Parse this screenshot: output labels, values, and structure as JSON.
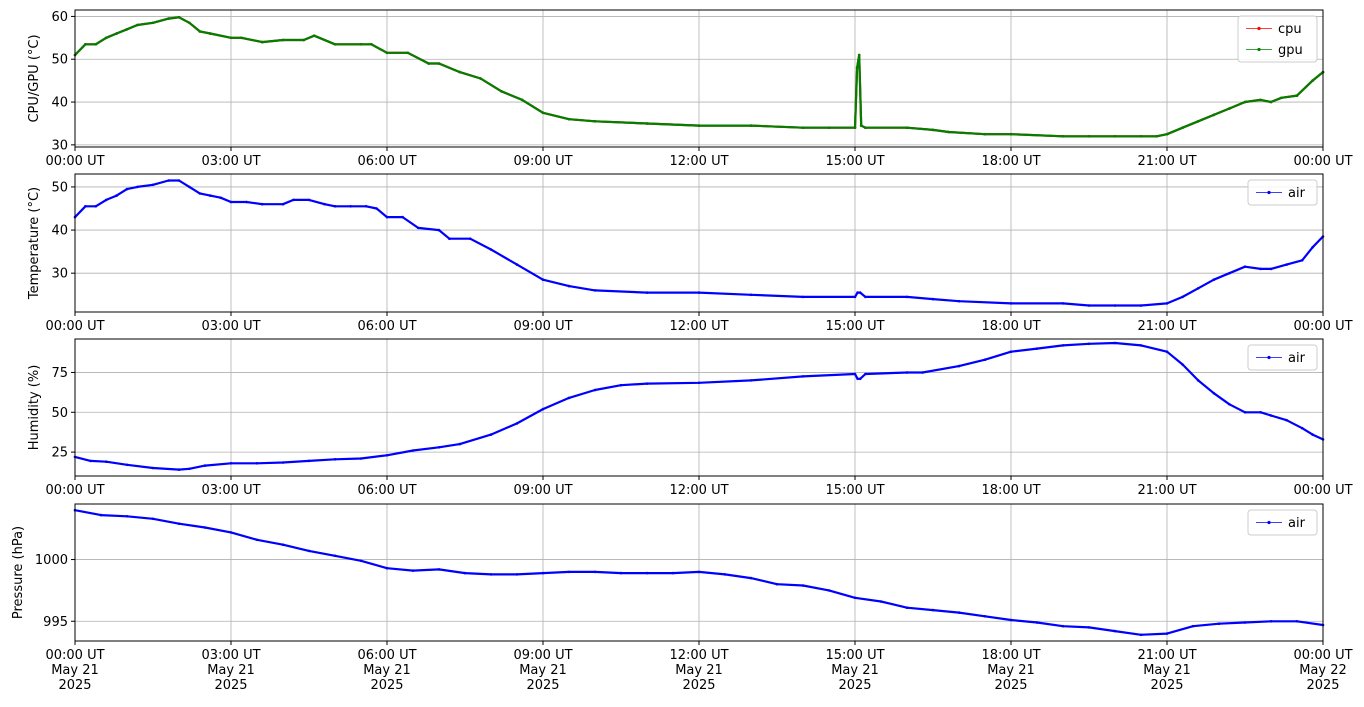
{
  "chart_data": [
    {
      "type": "line",
      "ylabel": "CPU/GPU (°C)",
      "ylim": [
        29.5,
        61.5
      ],
      "yticks": [
        30,
        40,
        50,
        60
      ],
      "grid": true,
      "legend": "top-right",
      "x_tick_labels": [
        "00:00 UT",
        "03:00 UT",
        "06:00 UT",
        "09:00 UT",
        "12:00 UT",
        "15:00 UT",
        "18:00 UT",
        "21:00 UT",
        "00:00 UT"
      ],
      "series": [
        {
          "name": "cpu",
          "color": "#ff0000",
          "hours": [
            0,
            0.2,
            0.4,
            0.6,
            0.8,
            1.0,
            1.2,
            1.5,
            1.8,
            2.0,
            2.2,
            2.4,
            2.6,
            3.0,
            3.2,
            3.6,
            4.0,
            4.4,
            4.6,
            5.0,
            5.5,
            5.7,
            6.0,
            6.4,
            6.8,
            7.0,
            7.4,
            7.8,
            8.2,
            8.6,
            9.0,
            9.5,
            10.0,
            11.0,
            12.0,
            13.0,
            14.0,
            14.5,
            15.0,
            15.04,
            15.08,
            15.12,
            15.2,
            16.0,
            16.5,
            16.8,
            17.5,
            18.0,
            19.0,
            19.5,
            20.0,
            20.5,
            20.8,
            21.0,
            21.3,
            21.6,
            21.9,
            22.2,
            22.5,
            22.8,
            23.0,
            23.2,
            23.5,
            23.8,
            24.0
          ],
          "values": [
            51,
            53.5,
            53.5,
            55,
            56,
            57,
            58,
            58.5,
            59.5,
            59.8,
            58.5,
            56.5,
            56,
            55,
            55,
            54,
            54.5,
            54.5,
            55.5,
            53.5,
            53.5,
            53.5,
            51.5,
            51.5,
            49,
            49,
            47,
            45.5,
            42.5,
            40.5,
            37.5,
            36,
            35.5,
            35,
            34.5,
            34.5,
            34,
            34,
            34,
            48,
            51,
            34.5,
            34,
            34,
            33.5,
            33,
            32.5,
            32.5,
            32,
            32,
            32,
            32,
            32,
            32.5,
            34,
            35.5,
            37,
            38.5,
            40,
            40.5,
            40,
            41,
            41.5,
            45,
            47
          ]
        },
        {
          "name": "gpu",
          "color": "#008000",
          "hours": [
            0,
            0.2,
            0.4,
            0.6,
            0.8,
            1.0,
            1.2,
            1.5,
            1.8,
            2.0,
            2.2,
            2.4,
            2.6,
            3.0,
            3.2,
            3.6,
            4.0,
            4.4,
            4.6,
            5.0,
            5.5,
            5.7,
            6.0,
            6.4,
            6.8,
            7.0,
            7.4,
            7.8,
            8.2,
            8.6,
            9.0,
            9.5,
            10.0,
            11.0,
            12.0,
            13.0,
            14.0,
            14.5,
            15.0,
            15.04,
            15.08,
            15.12,
            15.2,
            16.0,
            16.5,
            16.8,
            17.5,
            18.0,
            19.0,
            19.5,
            20.0,
            20.5,
            20.8,
            21.0,
            21.3,
            21.6,
            21.9,
            22.2,
            22.5,
            22.8,
            23.0,
            23.2,
            23.5,
            23.8,
            24.0
          ],
          "values": [
            51,
            53.5,
            53.5,
            55,
            56,
            57,
            58,
            58.5,
            59.5,
            59.8,
            58.5,
            56.5,
            56,
            55,
            55,
            54,
            54.5,
            54.5,
            55.5,
            53.5,
            53.5,
            53.5,
            51.5,
            51.5,
            49,
            49,
            47,
            45.5,
            42.5,
            40.5,
            37.5,
            36,
            35.5,
            35,
            34.5,
            34.5,
            34,
            34,
            34,
            48,
            51,
            34.5,
            34,
            34,
            33.5,
            33,
            32.5,
            32.5,
            32,
            32,
            32,
            32,
            32,
            32.5,
            34,
            35.5,
            37,
            38.5,
            40,
            40.5,
            40,
            41,
            41.5,
            45,
            47
          ]
        }
      ]
    },
    {
      "type": "line",
      "ylabel": "Temperature (°C)",
      "ylim": [
        21,
        53
      ],
      "yticks": [
        30,
        40,
        50
      ],
      "grid": true,
      "legend": "top-right",
      "x_tick_labels": [
        "00:00 UT",
        "03:00 UT",
        "06:00 UT",
        "09:00 UT",
        "12:00 UT",
        "15:00 UT",
        "18:00 UT",
        "21:00 UT",
        "00:00 UT"
      ],
      "series": [
        {
          "name": "air",
          "color": "#0000ff",
          "hours": [
            0,
            0.2,
            0.4,
            0.6,
            0.8,
            1.0,
            1.2,
            1.5,
            1.8,
            2.0,
            2.2,
            2.4,
            2.6,
            2.8,
            3.0,
            3.3,
            3.6,
            4.0,
            4.2,
            4.5,
            4.8,
            5.0,
            5.3,
            5.6,
            5.8,
            6.0,
            6.3,
            6.6,
            7.0,
            7.2,
            7.6,
            8.0,
            8.5,
            9.0,
            9.5,
            10.0,
            11.0,
            12.0,
            13.0,
            14.0,
            15.0,
            15.05,
            15.1,
            15.2,
            16.0,
            16.5,
            17.0,
            18.0,
            19.0,
            19.5,
            20.0,
            20.5,
            21.0,
            21.3,
            21.6,
            21.9,
            22.2,
            22.5,
            22.8,
            23.0,
            23.3,
            23.6,
            23.8,
            24.0
          ],
          "values": [
            43,
            45.5,
            45.5,
            47,
            48,
            49.5,
            50,
            50.5,
            51.5,
            51.5,
            50,
            48.5,
            48,
            47.5,
            46.5,
            46.5,
            46,
            46,
            47,
            47,
            46,
            45.5,
            45.5,
            45.5,
            45,
            43,
            43,
            40.5,
            40,
            38,
            38,
            35.5,
            32,
            28.5,
            27,
            26,
            25.5,
            25.5,
            25,
            24.5,
            24.5,
            25.5,
            25.5,
            24.5,
            24.5,
            24,
            23.5,
            23,
            23,
            22.5,
            22.5,
            22.5,
            23,
            24.5,
            26.5,
            28.5,
            30,
            31.5,
            31,
            31,
            32,
            33,
            36,
            38.5
          ]
        }
      ]
    },
    {
      "type": "line",
      "ylabel": "Humidity (%)",
      "ylim": [
        10,
        96
      ],
      "yticks": [
        25,
        50,
        75
      ],
      "grid": true,
      "legend": "top-right",
      "x_tick_labels": [
        "00:00 UT",
        "03:00 UT",
        "06:00 UT",
        "09:00 UT",
        "12:00 UT",
        "15:00 UT",
        "18:00 UT",
        "21:00 UT",
        "00:00 UT"
      ],
      "series": [
        {
          "name": "air",
          "color": "#0000ff",
          "hours": [
            0,
            0.3,
            0.6,
            1.0,
            1.5,
            2.0,
            2.2,
            2.5,
            3.0,
            3.5,
            4.0,
            4.5,
            5.0,
            5.5,
            6.0,
            6.5,
            7.0,
            7.4,
            8.0,
            8.5,
            9.0,
            9.5,
            10.0,
            10.5,
            11.0,
            12.0,
            13.0,
            14.0,
            15.0,
            15.05,
            15.1,
            15.2,
            16.0,
            16.3,
            17.0,
            17.5,
            18.0,
            18.5,
            19.0,
            19.5,
            20.0,
            20.5,
            21.0,
            21.3,
            21.6,
            21.9,
            22.2,
            22.5,
            22.8,
            23.0,
            23.3,
            23.6,
            23.8,
            24.0
          ],
          "values": [
            22,
            19.5,
            19,
            17,
            15,
            14,
            14.5,
            16.5,
            18,
            18,
            18.5,
            19.5,
            20.5,
            21,
            23,
            26,
            28,
            30,
            36,
            43,
            52,
            59,
            64,
            67,
            68,
            68.5,
            70,
            72.5,
            74,
            71,
            71,
            74,
            75,
            75,
            79,
            83,
            88,
            90,
            92,
            93,
            93.5,
            92,
            88,
            80,
            70,
            62,
            55,
            50,
            50,
            48,
            45,
            40,
            36,
            33
          ]
        }
      ]
    },
    {
      "type": "line",
      "ylabel": "Pressure (hPa)",
      "ylim": [
        993.4,
        1004.5
      ],
      "yticks": [
        995,
        1000
      ],
      "grid": true,
      "legend": "top-right",
      "x_tick_labels": [
        "00:00 UT\nMay 21\n2025",
        "03:00 UT\nMay 21\n2025",
        "06:00 UT\nMay 21\n2025",
        "09:00 UT\nMay 21\n2025",
        "12:00 UT\nMay 21\n2025",
        "15:00 UT\nMay 21\n2025",
        "18:00 UT\nMay 21\n2025",
        "21:00 UT\nMay 21\n2025",
        "00:00 UT\nMay 22\n2025"
      ],
      "series": [
        {
          "name": "air",
          "color": "#0000ff",
          "hours": [
            0,
            0.5,
            1.0,
            1.5,
            2.0,
            2.5,
            3.0,
            3.5,
            4.0,
            4.5,
            5.0,
            5.5,
            6.0,
            6.5,
            7.0,
            7.5,
            8.0,
            8.5,
            9.0,
            9.5,
            10.0,
            10.5,
            11.0,
            11.5,
            12.0,
            12.5,
            13.0,
            13.5,
            14.0,
            14.5,
            15.0,
            15.5,
            16.0,
            16.5,
            17.0,
            17.5,
            18.0,
            18.5,
            19.0,
            19.5,
            20.0,
            20.5,
            21.0,
            21.5,
            22.0,
            22.5,
            23.0,
            23.5,
            24.0
          ],
          "values": [
            1004.0,
            1003.6,
            1003.5,
            1003.3,
            1002.9,
            1002.6,
            1002.2,
            1001.6,
            1001.2,
            1000.7,
            1000.3,
            999.9,
            999.3,
            999.1,
            999.2,
            998.9,
            998.8,
            998.8,
            998.9,
            999.0,
            999.0,
            998.9,
            998.9,
            998.9,
            999.0,
            998.8,
            998.5,
            998.0,
            997.9,
            997.5,
            996.9,
            996.6,
            996.1,
            995.9,
            995.7,
            995.4,
            995.1,
            994.9,
            994.6,
            994.5,
            994.2,
            993.9,
            994.0,
            994.6,
            994.8,
            994.9,
            995.0,
            995.0,
            994.7
          ]
        }
      ]
    }
  ]
}
